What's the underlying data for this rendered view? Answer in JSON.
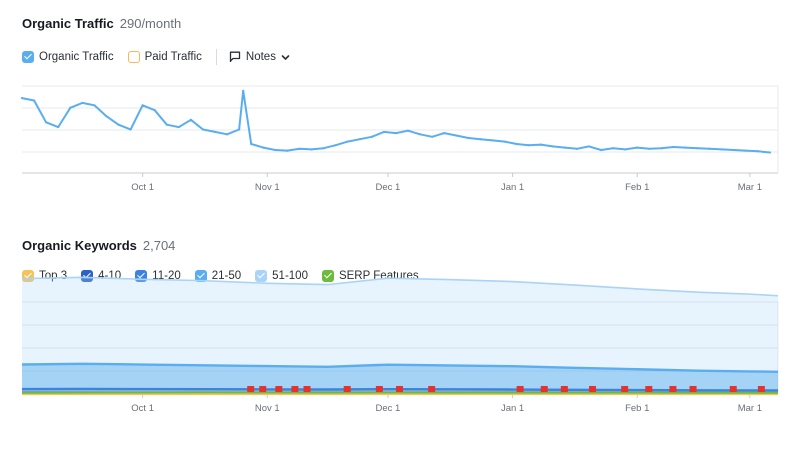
{
  "traffic": {
    "title": "Organic Traffic",
    "metric": "290/month",
    "legend": {
      "organic": "Organic Traffic",
      "paid": "Paid Traffic",
      "notes": "Notes"
    }
  },
  "keywords": {
    "title": "Organic Keywords",
    "metric": "2,704",
    "legend": [
      {
        "label": "Top 3",
        "color": "#f5c35c"
      },
      {
        "label": "4-10",
        "color": "#2b62c4"
      },
      {
        "label": "11-20",
        "color": "#3d82e0"
      },
      {
        "label": "21-50",
        "color": "#5aaeef"
      },
      {
        "label": "51-100",
        "color": "#a9d3f7"
      },
      {
        "label": "SERP Features",
        "color": "#6cbb3c"
      }
    ]
  },
  "colors": {
    "organic": "#5aaeef",
    "paid": "#f5b85c",
    "serp": "#6cbb3c",
    "flag": "#e5322d",
    "grid": "#e6e8ec",
    "axis": "#c7cbd2"
  },
  "chart_data": [
    {
      "type": "line",
      "title": "Organic Traffic",
      "x_ticks": [
        "Oct 1",
        "Nov 1",
        "Dec 1",
        "Jan 1",
        "Feb 1",
        "Mar 1"
      ],
      "series": [
        {
          "name": "Organic Traffic",
          "x": [
            "Sep 1",
            "Sep 4",
            "Sep 7",
            "Sep 10",
            "Sep 13",
            "Sep 16",
            "Sep 19",
            "Sep 22",
            "Sep 25",
            "Sep 28",
            "Oct 1",
            "Oct 4",
            "Oct 7",
            "Oct 10",
            "Oct 13",
            "Oct 16",
            "Oct 19",
            "Oct 22",
            "Oct 25",
            "Oct 26",
            "Oct 28",
            "Oct 31",
            "Nov 3",
            "Nov 6",
            "Nov 9",
            "Nov 12",
            "Nov 15",
            "Nov 18",
            "Nov 21",
            "Nov 24",
            "Nov 27",
            "Nov 30",
            "Dec 3",
            "Dec 6",
            "Dec 9",
            "Dec 12",
            "Dec 15",
            "Dec 18",
            "Dec 21",
            "Dec 24",
            "Dec 27",
            "Dec 30",
            "Jan 2",
            "Jan 5",
            "Jan 8",
            "Jan 11",
            "Jan 14",
            "Jan 17",
            "Jan 20",
            "Jan 23",
            "Jan 26",
            "Jan 29",
            "Feb 1",
            "Feb 4",
            "Feb 7",
            "Feb 10",
            "Feb 13",
            "Feb 16",
            "Feb 19",
            "Feb 22",
            "Feb 25",
            "Feb 28",
            "Mar 3",
            "Mar 6"
          ],
          "values": [
            620,
            600,
            420,
            380,
            540,
            580,
            560,
            470,
            400,
            360,
            560,
            520,
            400,
            380,
            440,
            360,
            340,
            320,
            360,
            680,
            240,
            210,
            190,
            185,
            200,
            195,
            205,
            230,
            260,
            280,
            300,
            340,
            330,
            350,
            320,
            300,
            330,
            310,
            290,
            280,
            270,
            260,
            240,
            230,
            235,
            220,
            210,
            200,
            220,
            190,
            205,
            195,
            210,
            200,
            205,
            215,
            210,
            205,
            200,
            195,
            190,
            185,
            180,
            170
          ]
        },
        {
          "name": "Paid Traffic",
          "values": []
        }
      ],
      "ylim": [
        0,
        720
      ],
      "grid": true
    },
    {
      "type": "area",
      "title": "Organic Keywords",
      "x_ticks": [
        "Oct 1",
        "Nov 1",
        "Dec 1",
        "Jan 1",
        "Feb 1",
        "Mar 1"
      ],
      "x": [
        "Sep 1",
        "Sep 16",
        "Oct 1",
        "Oct 16",
        "Nov 1",
        "Nov 16",
        "Dec 1",
        "Dec 16",
        "Jan 1",
        "Jan 16",
        "Feb 1",
        "Feb 16",
        "Mar 1",
        "Mar 8"
      ],
      "series": [
        {
          "name": "Top 3",
          "values": [
            2,
            2,
            2,
            2,
            2,
            2,
            2,
            2,
            2,
            2,
            2,
            2,
            2,
            2
          ]
        },
        {
          "name": "4-10",
          "values": [
            40,
            42,
            41,
            40,
            38,
            37,
            40,
            38,
            36,
            33,
            30,
            28,
            27,
            26
          ]
        },
        {
          "name": "11-20",
          "values": [
            120,
            122,
            118,
            115,
            110,
            108,
            115,
            112,
            108,
            100,
            95,
            90,
            88,
            86
          ]
        },
        {
          "name": "21-50",
          "values": [
            800,
            820,
            800,
            780,
            760,
            740,
            800,
            780,
            760,
            720,
            680,
            640,
            620,
            610
          ]
        },
        {
          "name": "51-100",
          "values": [
            2800,
            2820,
            2780,
            2760,
            2700,
            2680,
            2820,
            2800,
            2760,
            2700,
            2620,
            2560,
            2520,
            2480
          ]
        },
        {
          "name": "SERP Features",
          "values": [
            40,
            45,
            50,
            52,
            48,
            46,
            47,
            46,
            45,
            44,
            43,
            42,
            42,
            42
          ]
        }
      ],
      "serp_flags_x": [
        "Oct 27",
        "Oct 30",
        "Nov 3",
        "Nov 7",
        "Nov 10",
        "Nov 20",
        "Nov 28",
        "Dec 3",
        "Dec 11",
        "Jan 2",
        "Jan 8",
        "Jan 13",
        "Jan 20",
        "Jan 28",
        "Feb 3",
        "Feb 9",
        "Feb 14",
        "Feb 24",
        "Mar 3"
      ],
      "ylim": [
        0,
        3000
      ],
      "grid": true
    }
  ]
}
